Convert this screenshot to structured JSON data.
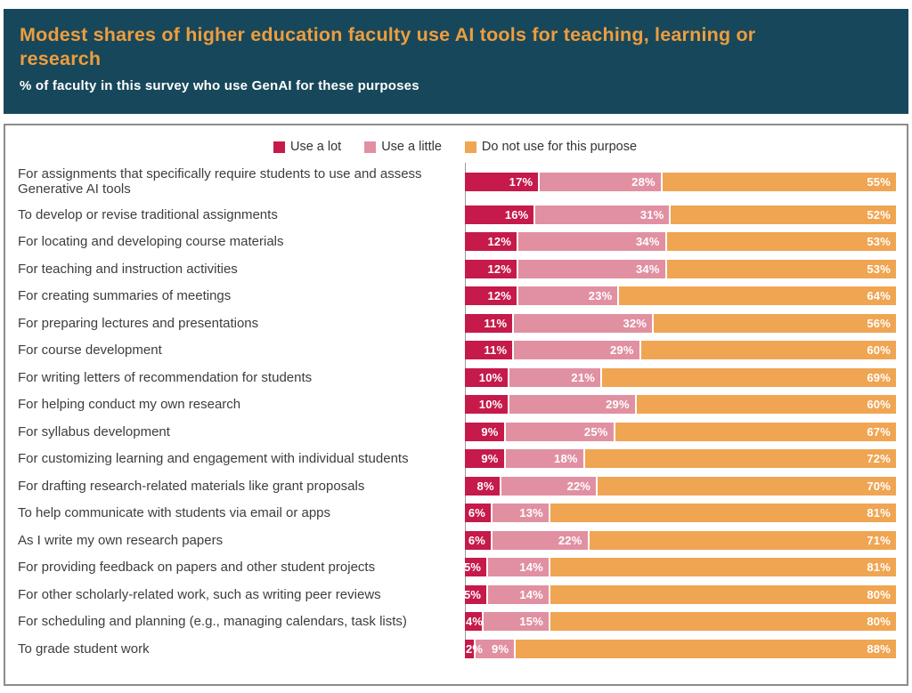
{
  "header": {
    "title": "Modest shares of higher education faculty use AI tools for teaching, learning or research",
    "subtitle": "% of faculty in this survey who use GenAI for these purposes",
    "background_color": "#17475A",
    "title_color": "#EE9D3E",
    "subtitle_color": "#FFFFFF"
  },
  "legend": {
    "items": [
      {
        "label": "Use a lot",
        "color": "#C51A4A"
      },
      {
        "label": "Use a little",
        "color": "#E190A2"
      },
      {
        "label": "Do not use for this purpose",
        "color": "#F0A552"
      }
    ]
  },
  "chart_data": {
    "type": "bar",
    "orientation": "horizontal",
    "stacked": true,
    "units": "%",
    "value_label_suffix": "%",
    "value_label_style": "white bold, inside right of each segment",
    "axis": {
      "x_range": [
        0,
        100
      ],
      "grid": false,
      "baseline_color": "#9a9a9a"
    },
    "legend_position": "top-center",
    "categories": [
      "For assignments that specifically require students to use and assess Generative AI tools",
      "To develop or revise traditional assignments",
      "For locating and developing course materials",
      "For teaching and instruction activities",
      "For creating summaries of meetings",
      "For preparing lectures and presentations",
      "For course development",
      "For writing letters of recommendation for students",
      "For helping conduct my own research",
      "For syllabus development",
      "For customizing learning and engagement with individual students",
      "For drafting research-related materials like grant proposals",
      "To help communicate with students via email or apps",
      "As I write my own research papers",
      "For providing feedback on papers and other student projects",
      "For other scholarly-related work, such as writing peer reviews",
      "For scheduling and planning (e.g., managing calendars, task lists)",
      "To grade student work"
    ],
    "series": [
      {
        "name": "Use a lot",
        "color": "#C51A4A",
        "values": [
          17,
          16,
          12,
          12,
          12,
          11,
          11,
          10,
          10,
          9,
          9,
          8,
          6,
          6,
          5,
          5,
          4,
          2
        ]
      },
      {
        "name": "Use a little",
        "color": "#E190A2",
        "values": [
          28,
          31,
          34,
          34,
          23,
          32,
          29,
          21,
          29,
          25,
          18,
          22,
          13,
          22,
          14,
          14,
          15,
          9
        ]
      },
      {
        "name": "Do not use for this purpose",
        "color": "#F0A552",
        "values": [
          55,
          52,
          53,
          53,
          64,
          56,
          60,
          69,
          60,
          67,
          72,
          70,
          81,
          71,
          81,
          80,
          80,
          88
        ]
      }
    ]
  }
}
